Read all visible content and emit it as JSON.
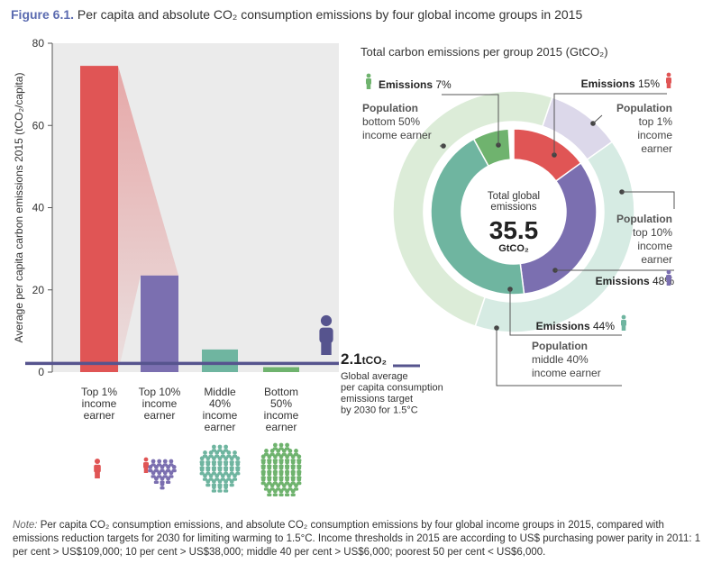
{
  "title": {
    "figure": "Figure 6.1.",
    "text": "Per capita and absolute CO₂ consumption emissions by four global income groups in 2015"
  },
  "colors": {
    "top1": "#e05555",
    "top10": "#7b6fb0",
    "middle40": "#6fb5a0",
    "bottom50": "#6fb36e",
    "panel_bg": "#ebebeb",
    "target_line": "#56548e"
  },
  "chart_data": [
    {
      "type": "bar",
      "title": "",
      "ylabel": "Average per capita carbon emissions 2015 (tCO₂/capita)",
      "ylim": [
        0,
        80
      ],
      "yticks": [
        "0",
        "20",
        "40",
        "60",
        "80"
      ],
      "categories": [
        "Top 1% income earner",
        "Top 10% income earner",
        "Middle 40% income earner",
        "Bottom 50% income earner"
      ],
      "category_lines": [
        [
          "Top 1%",
          "income",
          "earner"
        ],
        [
          "Top 10%",
          "income",
          "earner"
        ],
        [
          "Middle",
          "40%",
          "income",
          "earner"
        ],
        [
          "Bottom",
          "50%",
          "income",
          "earner"
        ]
      ],
      "values": [
        74.5,
        23.5,
        5.5,
        1.2
      ],
      "target": {
        "value": 2.1,
        "value_label": "2.1",
        "unit": "tCO₂",
        "caption": [
          "Global average",
          "per capita consumption",
          "emissions target",
          "by 2030 for 1.5°C"
        ]
      },
      "grid": false
    },
    {
      "type": "pie",
      "title": "Total carbon emissions per group 2015 (GtCO₂)",
      "center_label": [
        "Total global",
        "emissions"
      ],
      "center_value": "35.5",
      "center_unit": "GtCO₂",
      "emissions": [
        {
          "group": "Top 1%",
          "percent": 15,
          "label": "Emissions",
          "value_label": "15%"
        },
        {
          "group": "Top 10%",
          "percent": 48,
          "label": "Emissions",
          "value_label": "48%"
        },
        {
          "group": "Middle 40%",
          "percent": 44,
          "label": "Emissions",
          "value_label": "44%"
        },
        {
          "group": "Bottom 50%",
          "percent": 7,
          "label": "Emissions",
          "value_label": "7%"
        }
      ],
      "population": [
        {
          "group": "Top 1%",
          "percent": 1,
          "lines": [
            "Population",
            "top 1%",
            "income",
            "earner"
          ]
        },
        {
          "group": "Top 10%",
          "percent": 10,
          "lines": [
            "Population",
            "top 10%",
            "income",
            "earner"
          ]
        },
        {
          "group": "Middle 40%",
          "percent": 40,
          "lines": [
            "Population",
            "middle 40%",
            "income earner"
          ]
        },
        {
          "group": "Bottom 50%",
          "percent": 50,
          "lines": [
            "Population",
            "bottom 50%",
            "income earner"
          ]
        }
      ]
    }
  ],
  "note": {
    "label": "Note:",
    "text": "Per capita CO₂ consumption emissions, and absolute CO₂ consumption emissions by four global income groups in 2015, compared with emissions reduction targets for 2030 for limiting warming to 1.5°C. Income thresholds in 2015 are according to US$ purchasing power parity in 2011: 1 per cent > US$109,000; 10 per cent > US$38,000; middle 40 per cent > US$6,000; poorest 50 per cent < US$6,000."
  }
}
